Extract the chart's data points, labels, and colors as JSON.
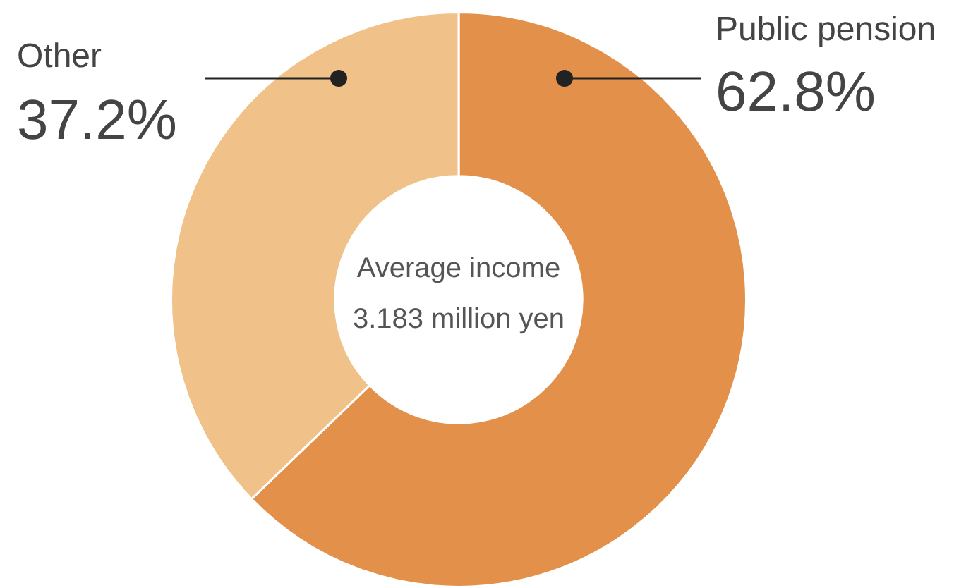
{
  "chart_data": {
    "type": "donut",
    "categories": [
      "Public pension",
      "Other"
    ],
    "values": [
      62.8,
      37.2
    ],
    "colors": [
      "#e2904a",
      "#f0c189"
    ],
    "value_labels": [
      "62.8%",
      "37.2%"
    ],
    "legend": false,
    "annotations": [
      "Average income",
      "3.183 million yen"
    ]
  }
}
